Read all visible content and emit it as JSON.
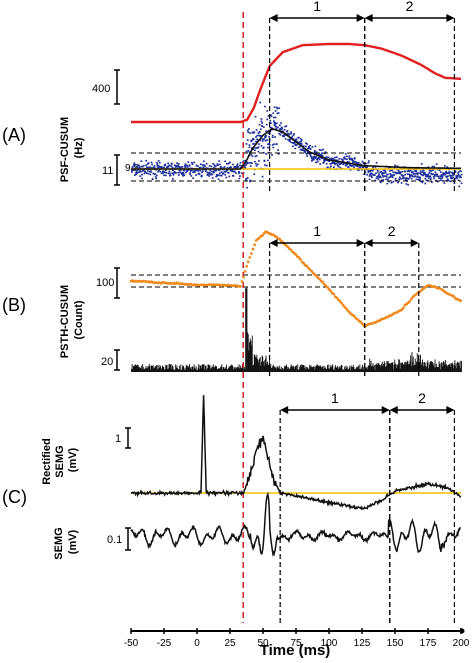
{
  "figure": {
    "colors": {
      "cusum": "#e32020",
      "pstf_cusum": "#f08a1e",
      "threshold": "#f2c200",
      "onset_line": "#cc1f1f",
      "dots": "#1f2f9a",
      "trace": "#111111"
    }
  },
  "chart_data": [
    {
      "panel": "A",
      "panel_label": "(A)",
      "type": "scatter",
      "ylabel": "PSF-CUSUM\n(Hz)",
      "scale_bars": [
        {
          "label": "400",
          "units": "Hz"
        },
        {
          "label": "11",
          "units": "Hz"
        }
      ],
      "reference_label": "9.8",
      "periods": [
        {
          "label": "1",
          "start_ms": 55,
          "end_ms": 127
        },
        {
          "label": "2",
          "start_ms": 127,
          "end_ms": 195
        }
      ],
      "cusum_curve": {
        "x": [
          -50,
          0,
          20,
          33,
          38,
          43,
          48,
          55,
          65,
          80,
          100,
          115,
          127,
          140,
          155,
          170,
          180,
          188,
          200
        ],
        "y": [
          0,
          0,
          0,
          0,
          10,
          60,
          140,
          240,
          300,
          330,
          335,
          335,
          330,
          315,
          285,
          245,
          210,
          190,
          185
        ]
      },
      "firing_rate_fit": {
        "x": [
          -50,
          33,
          37,
          42,
          50,
          57,
          65,
          75,
          85,
          100,
          127,
          160,
          200
        ],
        "y": [
          9.8,
          9.8,
          12,
          16,
          20,
          22,
          21,
          18,
          15,
          12.5,
          10.8,
          10.2,
          10
        ]
      }
    },
    {
      "panel": "B",
      "panel_label": "(B)",
      "type": "bar",
      "ylabel": "PSTH-CUSUM\n(Count)",
      "scale_bars": [
        {
          "label": "100",
          "units": "count"
        },
        {
          "label": "20",
          "units": "count"
        }
      ],
      "periods": [
        {
          "label": "1",
          "start_ms": 55,
          "end_ms": 127
        },
        {
          "label": "2",
          "start_ms": 127,
          "end_ms": 168
        }
      ],
      "cusum_curve": {
        "x": [
          -50,
          -20,
          0,
          20,
          33,
          38,
          45,
          52,
          60,
          70,
          85,
          100,
          115,
          127,
          140,
          155,
          165,
          175,
          185,
          200
        ],
        "y": [
          0,
          -5,
          -10,
          -10,
          -12,
          40,
          100,
          120,
          110,
          80,
          30,
          -20,
          -75,
          -110,
          -95,
          -70,
          -35,
          -10,
          -20,
          -50
        ]
      }
    },
    {
      "panel": "C",
      "panel_label": "(C)",
      "type": "line",
      "xlabel": "Time (ms)",
      "xlim": [
        -50,
        200
      ],
      "xticks": [
        -50,
        -25,
        0,
        25,
        50,
        75,
        100,
        125,
        150,
        175,
        200
      ],
      "stimulus_ms": 35,
      "traces": [
        {
          "name": "Rectified SEMG",
          "ylabel": "Rectified\nSEMG\n(mV)",
          "scale_label": "1"
        },
        {
          "name": "SEMG",
          "ylabel": "SEMG\n(mV)",
          "scale_label": "0.1"
        }
      ],
      "periods": [
        {
          "label": "1",
          "start_ms": 63,
          "end_ms": 146
        },
        {
          "label": "2",
          "start_ms": 146,
          "end_ms": 195
        }
      ]
    }
  ]
}
